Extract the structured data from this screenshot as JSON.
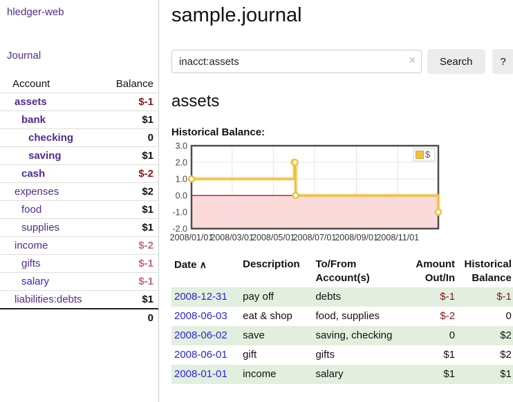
{
  "app": {
    "title": "hledger-web",
    "nav_journal": "Journal"
  },
  "sidebar": {
    "header": {
      "account": "Account",
      "balance": "Balance"
    },
    "accounts": [
      {
        "label": "assets",
        "depth": 1,
        "bold": true,
        "link": "purple",
        "balance": "$-1",
        "balance_class": "neg"
      },
      {
        "label": "bank",
        "depth": 2,
        "bold": true,
        "link": "purple",
        "balance": "$1",
        "balance_class": ""
      },
      {
        "label": "checking",
        "depth": 3,
        "bold": true,
        "link": "purple",
        "balance": "0",
        "balance_class": ""
      },
      {
        "label": "saving",
        "depth": 3,
        "bold": true,
        "link": "purple",
        "balance": "$1",
        "balance_class": ""
      },
      {
        "label": "cash",
        "depth": 2,
        "bold": true,
        "link": "purple",
        "balance": "$-2",
        "balance_class": "neg"
      },
      {
        "label": "expenses",
        "depth": 1,
        "bold": false,
        "link": "purple",
        "balance": "$2",
        "balance_class": ""
      },
      {
        "label": "food",
        "depth": 2,
        "bold": false,
        "link": "purple",
        "balance": "$1",
        "balance_class": ""
      },
      {
        "label": "supplies",
        "depth": 2,
        "bold": false,
        "link": "purple",
        "balance": "$1",
        "balance_class": ""
      },
      {
        "label": "income",
        "depth": 1,
        "bold": false,
        "link": "purple",
        "balance": "$-2",
        "balance_class": "negl"
      },
      {
        "label": "gifts",
        "depth": 2,
        "bold": false,
        "link": "purple",
        "balance": "$-1",
        "balance_class": "negl"
      },
      {
        "label": "salary",
        "depth": 2,
        "bold": false,
        "link": "blue",
        "balance": "$-1",
        "balance_class": "negl"
      },
      {
        "label": "liabilities:debts",
        "depth": 1,
        "bold": false,
        "link": "purple",
        "balance": "$1",
        "balance_class": ""
      }
    ],
    "total": "0"
  },
  "main": {
    "title": "sample.journal",
    "search": {
      "value": "inacct:assets",
      "clear_icon": "×",
      "button": "Search",
      "help_button": "?"
    },
    "account_heading": "assets",
    "chart_label": "Historical Balance:"
  },
  "chart_data": {
    "type": "line",
    "title": "Historical Balance",
    "legend": {
      "label": "$",
      "position": "top-right"
    },
    "x_range": [
      "2008-01-01",
      "2008-12-31"
    ],
    "ylim": [
      -2,
      3
    ],
    "y_ticks": [
      "3.0",
      "2.0",
      "1.0",
      "0.0",
      "-1.0",
      "-2.0"
    ],
    "x_ticks": [
      {
        "date": "2008-01-01",
        "label": "2008/01/01"
      },
      {
        "date": "2008-03-01",
        "label": "2008/03/01"
      },
      {
        "date": "2008-05-01",
        "label": "2008/05/01"
      },
      {
        "date": "2008-07-01",
        "label": "2008/07/01"
      },
      {
        "date": "2008-09-01",
        "label": "2008/09/01"
      },
      {
        "date": "2008-11-01",
        "label": "2008/11/01"
      }
    ],
    "series": [
      {
        "name": "$",
        "color": "#edc240",
        "step": true,
        "points": [
          {
            "date": "2008-01-01",
            "value": 1
          },
          {
            "date": "2008-06-01",
            "value": 2
          },
          {
            "date": "2008-06-02",
            "value": 2
          },
          {
            "date": "2008-06-03",
            "value": 0
          },
          {
            "date": "2008-12-31",
            "value": -1
          }
        ]
      }
    ],
    "negative_region": {
      "from": 0,
      "to": -2,
      "color": "#fcdada",
      "zero_line_color": "#a40000"
    },
    "grid": {
      "color": "#e4e4e4",
      "border_color": "#4d4d4d"
    }
  },
  "transactions": {
    "headers": {
      "date": "Date",
      "sort_icon": "∧",
      "description": "Description",
      "account": "To/From Account(s)",
      "amount": "Amount Out/In",
      "balance": "Historical Balance"
    },
    "rows": [
      {
        "date": "2008-12-31",
        "description": "pay off",
        "accounts": "debts",
        "amount": "$-1",
        "amount_class": "neg",
        "balance": "$-1",
        "balance_class": "neg",
        "shaded": true
      },
      {
        "date": "2008-06-03",
        "description": "eat & shop",
        "accounts": "food, supplies",
        "amount": "$-2",
        "amount_class": "neg",
        "balance": "0",
        "balance_class": "",
        "shaded": false
      },
      {
        "date": "2008-06-02",
        "description": "save",
        "accounts": "saving, checking",
        "amount": "0",
        "amount_class": "",
        "balance": "$2",
        "balance_class": "",
        "shaded": true
      },
      {
        "date": "2008-06-01",
        "description": "gift",
        "accounts": "gifts",
        "amount": "$1",
        "amount_class": "",
        "balance": "$2",
        "balance_class": "",
        "shaded": false
      },
      {
        "date": "2008-01-01",
        "description": "income",
        "accounts": "salary",
        "amount": "$1",
        "amount_class": "",
        "balance": "$1",
        "balance_class": "",
        "shaded": true
      }
    ]
  },
  "colors": {
    "purple_link": "#4f2a93",
    "blue_link": "#2626dd",
    "negative_dark": "#8b1515",
    "negative_light": "#bd6b6e",
    "row_shade_green": "#e2efde",
    "chart_line": "#edc240",
    "chart_negative_fill": "#fcdada",
    "zero_line": "#a40000"
  }
}
